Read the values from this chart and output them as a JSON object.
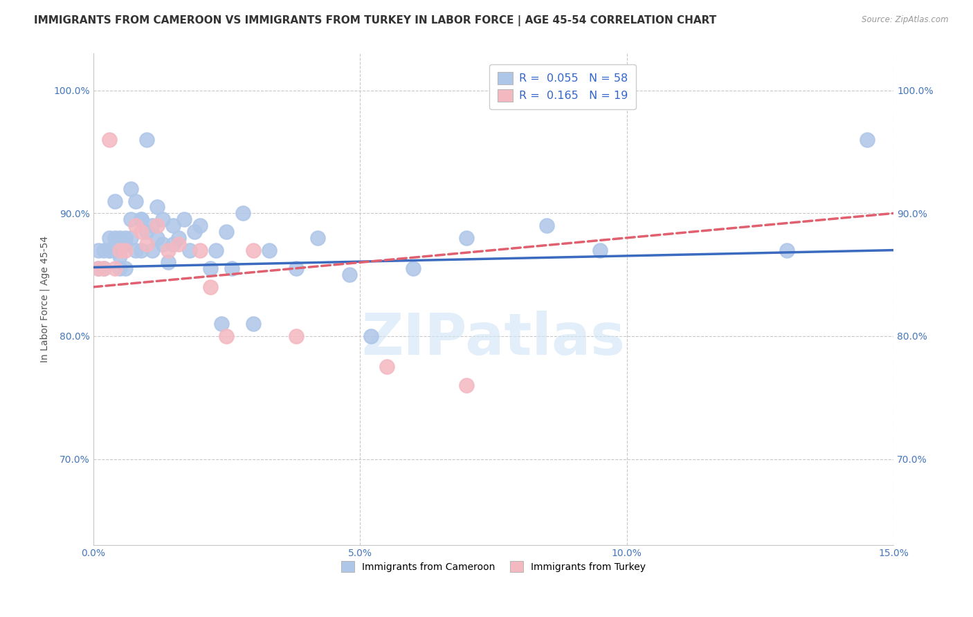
{
  "title": "IMMIGRANTS FROM CAMEROON VS IMMIGRANTS FROM TURKEY IN LABOR FORCE | AGE 45-54 CORRELATION CHART",
  "source": "Source: ZipAtlas.com",
  "ylabel": "In Labor Force | Age 45-54",
  "xlim": [
    0.0,
    0.15
  ],
  "ylim": [
    0.63,
    1.03
  ],
  "xticks": [
    0.0,
    0.05,
    0.1,
    0.15
  ],
  "xticklabels": [
    "0.0%",
    "5.0%",
    "10.0%",
    "15.0%"
  ],
  "yticks": [
    0.7,
    0.8,
    0.9,
    1.0
  ],
  "yticklabels": [
    "70.0%",
    "80.0%",
    "90.0%",
    "100.0%"
  ],
  "grid_color": "#c8c8c8",
  "background_color": "#ffffff",
  "cameroon_color": "#aec6e8",
  "turkey_color": "#f4b8c1",
  "cameroon_line_color": "#3a6bbf",
  "turkey_line_color": "#e06070",
  "legend_R_cameroon": "0.055",
  "legend_N_cameroon": "58",
  "legend_R_turkey": "0.165",
  "legend_N_turkey": "19",
  "legend_label_cameroon": "Immigrants from Cameroon",
  "legend_label_turkey": "Immigrants from Turkey",
  "watermark_text": "ZIPatlas",
  "title_fontsize": 11,
  "axis_label_fontsize": 10,
  "tick_fontsize": 10,
  "cameroon_x": [
    0.001,
    0.001,
    0.002,
    0.002,
    0.003,
    0.003,
    0.003,
    0.004,
    0.004,
    0.004,
    0.005,
    0.005,
    0.005,
    0.006,
    0.006,
    0.006,
    0.007,
    0.007,
    0.007,
    0.008,
    0.008,
    0.009,
    0.009,
    0.009,
    0.01,
    0.01,
    0.011,
    0.011,
    0.012,
    0.012,
    0.013,
    0.013,
    0.014,
    0.015,
    0.015,
    0.016,
    0.017,
    0.018,
    0.019,
    0.02,
    0.022,
    0.023,
    0.024,
    0.025,
    0.026,
    0.028,
    0.03,
    0.033,
    0.038,
    0.042,
    0.048,
    0.052,
    0.06,
    0.07,
    0.085,
    0.095,
    0.13,
    0.145
  ],
  "cameroon_y": [
    0.855,
    0.87,
    0.87,
    0.855,
    0.87,
    0.88,
    0.87,
    0.87,
    0.91,
    0.88,
    0.88,
    0.865,
    0.855,
    0.88,
    0.875,
    0.855,
    0.895,
    0.88,
    0.92,
    0.91,
    0.87,
    0.895,
    0.895,
    0.87,
    0.96,
    0.885,
    0.89,
    0.87,
    0.905,
    0.88,
    0.875,
    0.895,
    0.86,
    0.89,
    0.875,
    0.88,
    0.895,
    0.87,
    0.885,
    0.89,
    0.855,
    0.87,
    0.81,
    0.885,
    0.855,
    0.9,
    0.81,
    0.87,
    0.855,
    0.88,
    0.85,
    0.8,
    0.855,
    0.88,
    0.89,
    0.87,
    0.87,
    0.96
  ],
  "turkey_x": [
    0.001,
    0.002,
    0.003,
    0.004,
    0.005,
    0.006,
    0.008,
    0.009,
    0.01,
    0.012,
    0.014,
    0.016,
    0.02,
    0.022,
    0.025,
    0.03,
    0.038,
    0.055,
    0.07
  ],
  "turkey_y": [
    0.855,
    0.855,
    0.96,
    0.855,
    0.87,
    0.87,
    0.89,
    0.885,
    0.875,
    0.89,
    0.87,
    0.875,
    0.87,
    0.84,
    0.8,
    0.87,
    0.8,
    0.775,
    0.76
  ]
}
